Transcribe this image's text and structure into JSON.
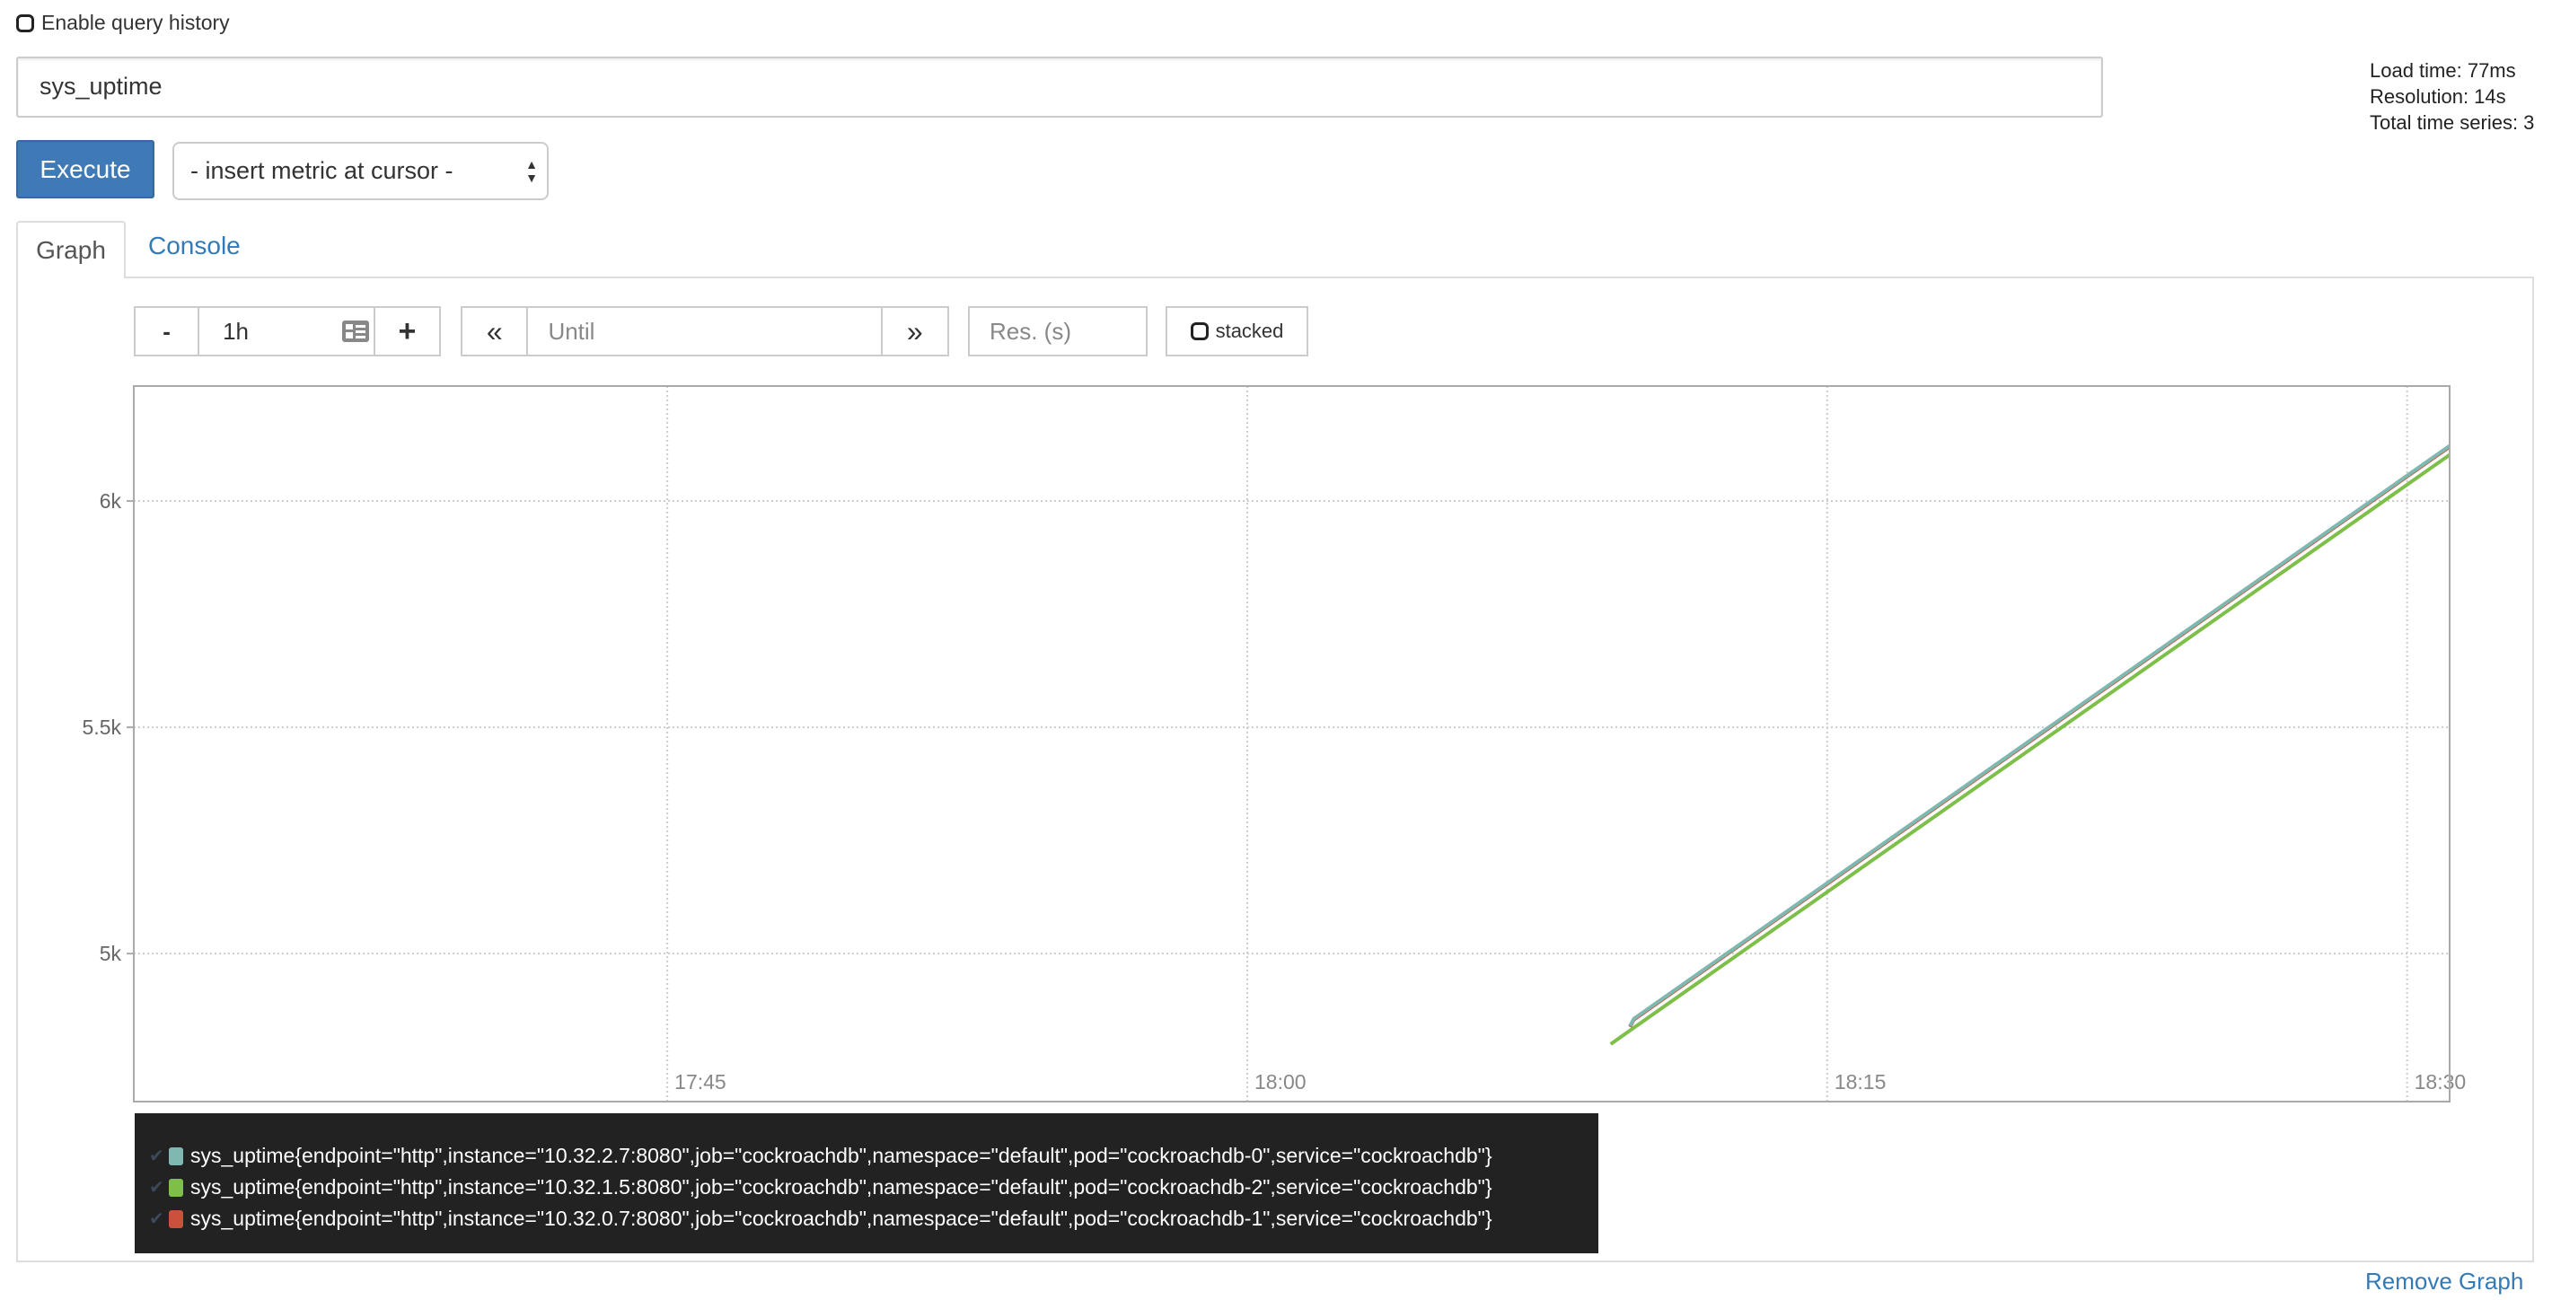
{
  "query_history": {
    "label": "Enable query history",
    "checked": false
  },
  "expression": {
    "value": "sys_uptime"
  },
  "stats": {
    "load_time": "Load time: 77ms",
    "resolution": "Resolution: 14s",
    "total_series": "Total time series: 3"
  },
  "execute_label": "Execute",
  "metric_select": {
    "selected": "- insert metric at cursor -"
  },
  "tabs": [
    {
      "label": "Graph",
      "active": true
    },
    {
      "label": "Console",
      "active": false
    }
  ],
  "controls": {
    "range_minus": "-",
    "range_value": "1h",
    "range_plus": "+",
    "back": "«",
    "until_placeholder": "Until",
    "forward": "»",
    "res_placeholder": "Res. (s)",
    "stacked_label": "stacked"
  },
  "chart_data": {
    "type": "line",
    "x_ticks": [
      "17:45",
      "18:00",
      "18:15",
      "18:30"
    ],
    "y_ticks": [
      "5k",
      "5.5k",
      "6k"
    ],
    "y_tick_values": [
      5000,
      5500,
      6000
    ],
    "xlim": [
      "17:31:12",
      "18:31:06"
    ],
    "ylim": [
      4673,
      6254
    ],
    "grid": true,
    "series": [
      {
        "name": "sys_uptime{endpoint=\"http\",instance=\"10.32.2.7:8080\",job=\"cockroachdb\",namespace=\"default\",pod=\"cockroachdb-0\",service=\"cockroachdb\"}",
        "color": "#7eb8b0",
        "points": [
          [
            "18:09:54",
            4840
          ],
          [
            "18:10:00",
            4856
          ],
          [
            "18:12:00",
            4976
          ],
          [
            "18:14:00",
            5096
          ],
          [
            "18:16:00",
            5216
          ],
          [
            "18:18:00",
            5336
          ],
          [
            "18:20:00",
            5456
          ],
          [
            "18:22:00",
            5576
          ],
          [
            "18:24:00",
            5696
          ],
          [
            "18:26:00",
            5816
          ],
          [
            "18:28:00",
            5936
          ],
          [
            "18:30:00",
            6056
          ],
          [
            "18:31:06",
            6122
          ]
        ]
      },
      {
        "name": "sys_uptime{endpoint=\"http\",instance=\"10.32.1.5:8080\",job=\"cockroachdb\",namespace=\"default\",pod=\"cockroachdb-2\",service=\"cockroachdb\"}",
        "color": "#7ebf49",
        "points": [
          [
            "18:09:24",
            4800
          ],
          [
            "18:10:00",
            4836
          ],
          [
            "18:12:00",
            4956
          ],
          [
            "18:14:00",
            5076
          ],
          [
            "18:16:00",
            5196
          ],
          [
            "18:18:00",
            5316
          ],
          [
            "18:20:00",
            5436
          ],
          [
            "18:22:00",
            5556
          ],
          [
            "18:24:00",
            5676
          ],
          [
            "18:26:00",
            5796
          ],
          [
            "18:28:00",
            5916
          ],
          [
            "18:30:00",
            6036
          ],
          [
            "18:31:06",
            6102
          ]
        ]
      },
      {
        "name": "sys_uptime{endpoint=\"http\",instance=\"10.32.0.7:8080\",job=\"cockroachdb\",namespace=\"default\",pod=\"cockroachdb-1\",service=\"cockroachdb\"}",
        "color": "#cb513a",
        "points": [
          [
            "18:09:54",
            4838
          ],
          [
            "18:10:00",
            4854
          ],
          [
            "18:12:00",
            4974
          ],
          [
            "18:14:00",
            5094
          ],
          [
            "18:16:00",
            5214
          ],
          [
            "18:18:00",
            5334
          ],
          [
            "18:20:00",
            5454
          ],
          [
            "18:22:00",
            5574
          ],
          [
            "18:24:00",
            5694
          ],
          [
            "18:26:00",
            5814
          ],
          [
            "18:28:00",
            5934
          ],
          [
            "18:30:00",
            6054
          ],
          [
            "18:31:06",
            6120
          ]
        ]
      }
    ]
  },
  "remove_graph_label": "Remove Graph"
}
